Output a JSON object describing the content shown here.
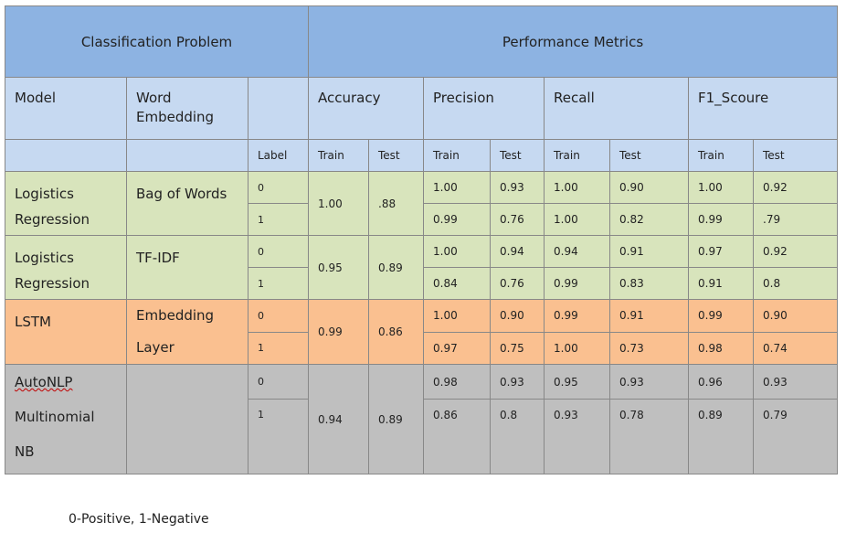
{
  "header": {
    "problem": "Classification Problem",
    "metrics": "Performance Metrics"
  },
  "subheader": {
    "model": "Model",
    "embedding": "Word Embedding",
    "accuracy": "Accuracy",
    "precision": "Precision",
    "recall": "Recall",
    "f1": "F1_Scoure"
  },
  "labels": {
    "label": "Label",
    "train": "Train",
    "test": "Test"
  },
  "groups": [
    {
      "model": "Logistics Regression",
      "embedding": "Bag of Words",
      "acc_train": "1.00",
      "acc_test": ".88",
      "rows": [
        {
          "label": "0",
          "p_train": "1.00",
          "p_test": "0.93",
          "r_train": "1.00",
          "r_test": "0.90",
          "f_train": "1.00",
          "f_test": "0.92"
        },
        {
          "label": "1",
          "p_train": "0.99",
          "p_test": "0.76",
          "r_train": "1.00",
          "r_test": "0.82",
          "f_train": "0.99",
          "f_test": ".79"
        }
      ]
    },
    {
      "model": "Logistics Regression",
      "embedding": "TF-IDF",
      "acc_train": "0.95",
      "acc_test": "0.89",
      "rows": [
        {
          "label": "0",
          "p_train": "1.00",
          "p_test": "0.94",
          "r_train": "0.94",
          "r_test": "0.91",
          "f_train": "0.97",
          "f_test": "0.92"
        },
        {
          "label": "1",
          "p_train": "0.84",
          "p_test": "0.76",
          "r_train": "0.99",
          "r_test": "0.83",
          "f_train": "0.91",
          "f_test": "0.8"
        }
      ]
    },
    {
      "model": "LSTM",
      "embedding": "Embedding Layer",
      "acc_train": "0.99",
      "acc_test": "0.86",
      "rows": [
        {
          "label": "0",
          "p_train": "1.00",
          "p_test": "0.90",
          "r_train": "0.99",
          "r_test": "0.91",
          "f_train": "0.99",
          "f_test": "0.90"
        },
        {
          "label": "1",
          "p_train": "0.97",
          "p_test": "0.75",
          "r_train": "1.00",
          "r_test": "0.73",
          "f_train": "0.98",
          "f_test": "0.74"
        }
      ]
    },
    {
      "model_line1": "AutoNLP",
      "model_line2": "Multinomial",
      "model_line3": "NB",
      "embedding": "",
      "acc_train": "0.94",
      "acc_test": "0.89",
      "rows": [
        {
          "label": "0",
          "p_train": "0.98",
          "p_test": "0.93",
          "r_train": "0.95",
          "r_test": "0.93",
          "f_train": "0.96",
          "f_test": "0.93"
        },
        {
          "label": "1",
          "p_train": "0.86",
          "p_test": "0.8",
          "r_train": "0.93",
          "r_test": "0.78",
          "f_train": "0.89",
          "f_test": "0.79"
        }
      ]
    }
  ],
  "footnote": "0-Positive, 1-Negative"
}
